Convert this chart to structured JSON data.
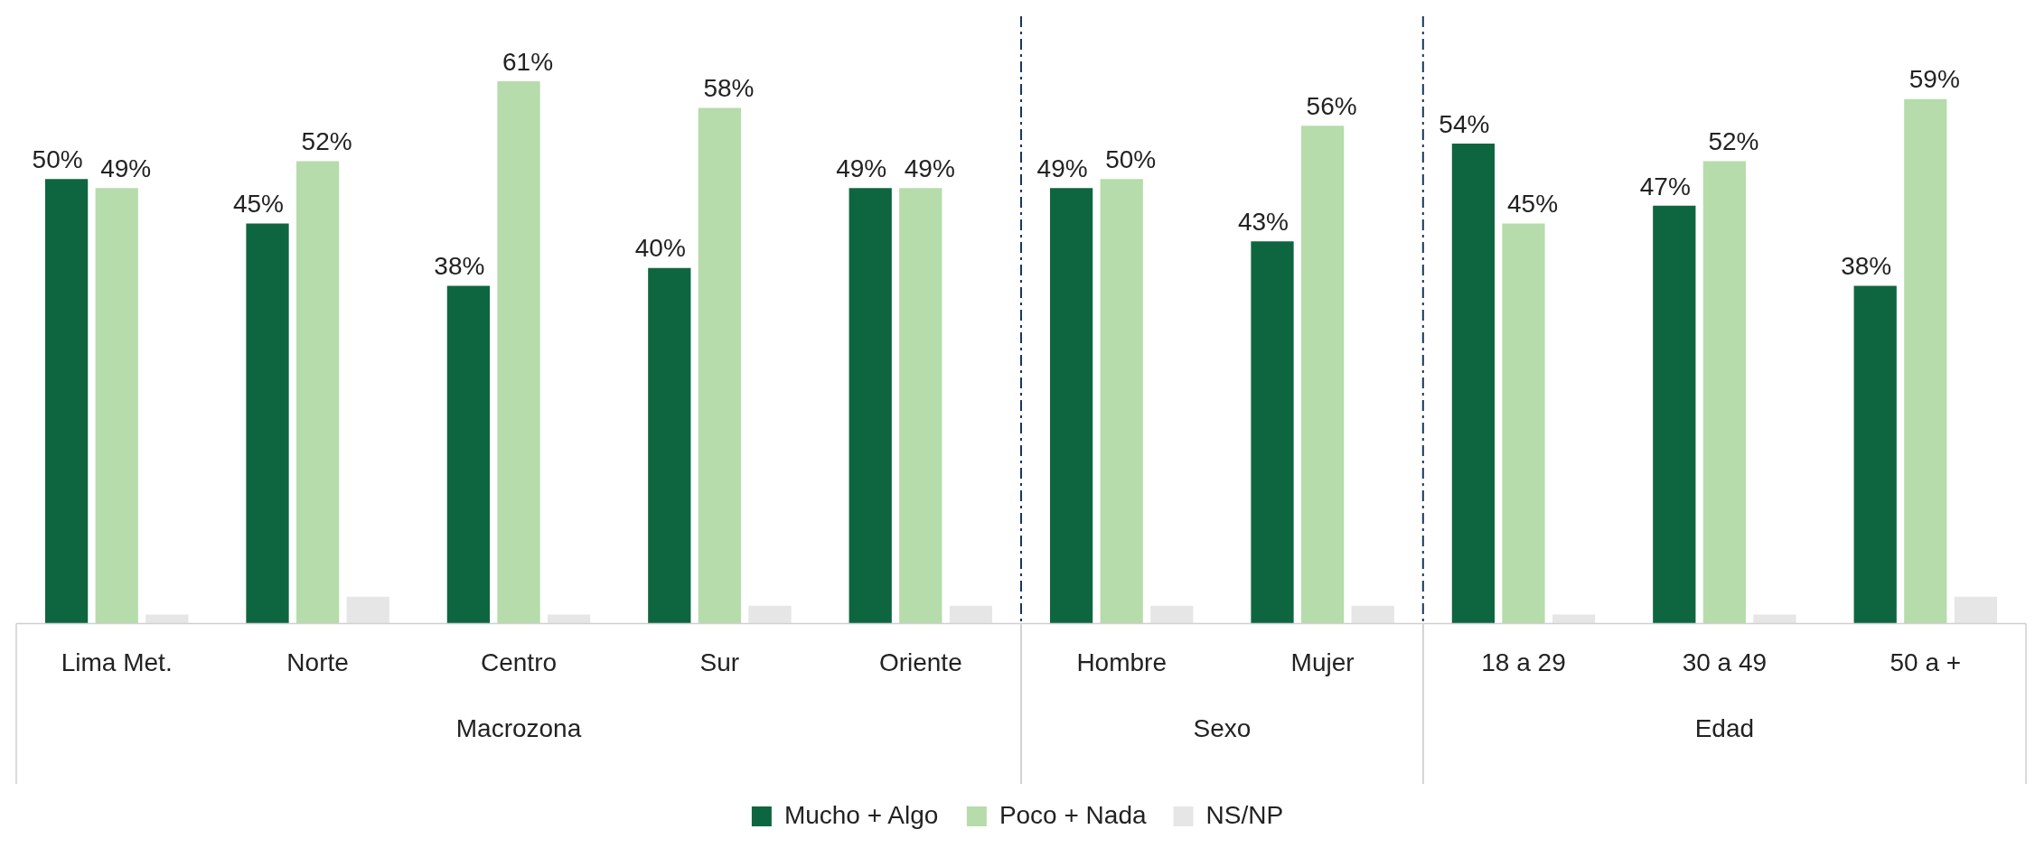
{
  "chart_data": {
    "type": "bar",
    "categories": [
      "Lima Met.",
      "Norte",
      "Centro",
      "Sur",
      "Oriente",
      "Hombre",
      "Mujer",
      "18 a 29",
      "30 a 49",
      "50 a +"
    ],
    "series": [
      {
        "name": "Mucho + Algo",
        "color": "#0e6640",
        "values": [
          50,
          45,
          38,
          40,
          49,
          49,
          43,
          54,
          47,
          38
        ],
        "value_labels": [
          "50%",
          "45%",
          "38%",
          "40%",
          "49%",
          "49%",
          "43%",
          "54%",
          "47%",
          "38%"
        ]
      },
      {
        "name": "Poco + Nada",
        "color": "#b5dcaa",
        "values": [
          49,
          52,
          61,
          58,
          49,
          50,
          56,
          45,
          52,
          59
        ],
        "value_labels": [
          "49%",
          "52%",
          "61%",
          "58%",
          "49%",
          "50%",
          "56%",
          "45%",
          "52%",
          "59%"
        ]
      },
      {
        "name": "NS/NP",
        "color": "#e6e6e6",
        "values": [
          1,
          3,
          1,
          2,
          2,
          2,
          2,
          1,
          1,
          3
        ]
      }
    ],
    "annotations": [
      "Macrozona",
      "Sexo",
      "Edad"
    ],
    "legend": "bottom",
    "grid": false
  }
}
